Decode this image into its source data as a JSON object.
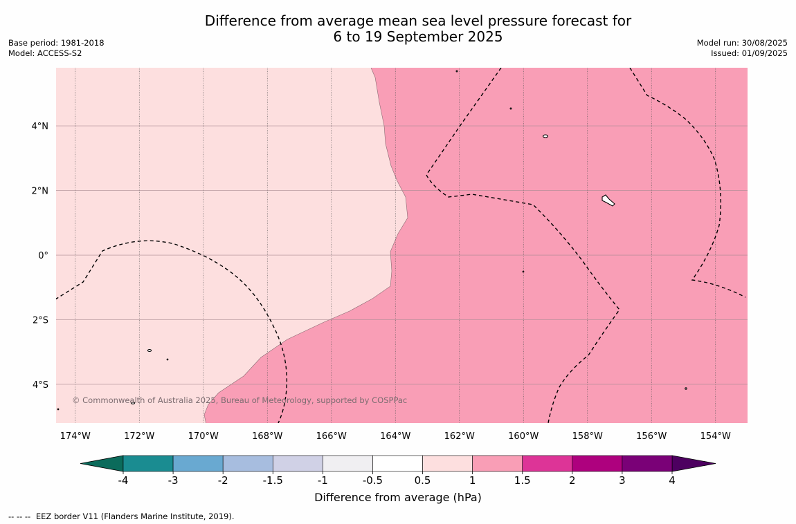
{
  "title": {
    "line1": "Difference from average mean sea level pressure forecast for",
    "line2": "6 to 19 September 2025"
  },
  "meta_left": {
    "base_period": "Base period: 1981-2018",
    "model": "Model: ACCESS-S2"
  },
  "meta_right": {
    "model_run": "Model run: 30/08/2025",
    "issued": "Issued: 01/09/2025"
  },
  "map": {
    "lat_range": [
      -5.2,
      5.8
    ],
    "lon_range": [
      -174.6,
      -153.0
    ],
    "lat_labels": [
      {
        "lat": 4,
        "text": "4°N"
      },
      {
        "lat": 2,
        "text": "2°N"
      },
      {
        "lat": 0,
        "text": "0°"
      },
      {
        "lat": -2,
        "text": "2°S"
      },
      {
        "lat": -4,
        "text": "4°S"
      }
    ],
    "lon_labels": [
      {
        "lon": -174,
        "text": "174°W"
      },
      {
        "lon": -172,
        "text": "172°W"
      },
      {
        "lon": -170,
        "text": "170°W"
      },
      {
        "lon": -168,
        "text": "168°W"
      },
      {
        "lon": -166,
        "text": "166°W"
      },
      {
        "lon": -164,
        "text": "164°W"
      },
      {
        "lon": -162,
        "text": "162°W"
      },
      {
        "lon": -160,
        "text": "160°W"
      },
      {
        "lon": -158,
        "text": "158°W"
      },
      {
        "lon": -156,
        "text": "156°W"
      },
      {
        "lon": -154,
        "text": "154°W"
      }
    ],
    "fill_low_color": "#fddfdf",
    "fill_high_color": "#f99eb6",
    "fill_low_class": "0.5 to 1",
    "fill_high_class": "1 to 1.5",
    "copyright": "© Commonwealth of Australia 2025, Bureau of Meteorology, supported by COSPPac"
  },
  "colorbar": {
    "tick_labels": [
      "-4",
      "-3",
      "-2",
      "-1.5",
      "-1",
      "-0.5",
      "0.5",
      "1",
      "1.5",
      "2",
      "3",
      "4"
    ],
    "colors": [
      "#1a8c91",
      "#69a9d1",
      "#a7bddf",
      "#d0d1e6",
      "#f0eff2",
      "#ffffff",
      "#fddfdf",
      "#f99eb6",
      "#dd3497",
      "#ae017e",
      "#7a0177"
    ],
    "under_color": "#0b6b5b",
    "over_color": "#4d0060",
    "label": "Difference from average (hPa)"
  },
  "footer": {
    "dash_symbol": "--  --  --",
    "text": "EEZ border V11 (Flanders Marine Institute, 2019)."
  }
}
